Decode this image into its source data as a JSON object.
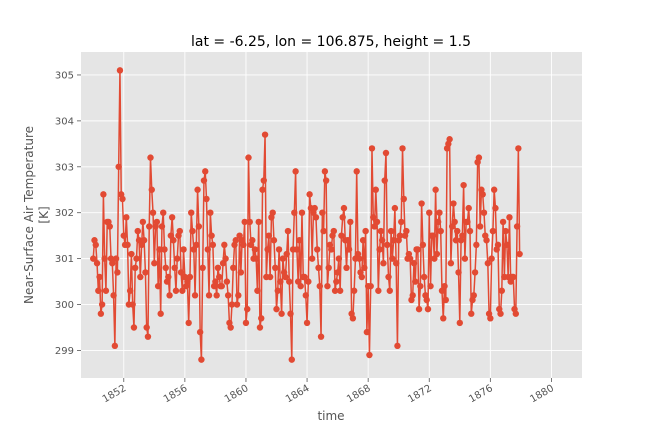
{
  "chart_data": {
    "type": "line",
    "title": "lat = -6.25, lon = 106.875, height = 1.5",
    "xlabel": "time",
    "ylabel_lines": [
      "Near-Surface Air Temperature",
      "[K]"
    ],
    "xlim": [
      1849.2,
      1882.0
    ],
    "ylim": [
      298.4,
      305.5
    ],
    "x_ticks": [
      1852,
      1856,
      1860,
      1864,
      1868,
      1872,
      1876,
      1880
    ],
    "y_ticks": [
      299,
      300,
      301,
      302,
      303,
      304,
      305
    ],
    "grid": true,
    "color": "#E24A33",
    "series": [
      {
        "x_start": 1850,
        "step": 0.0833333,
        "values": [
          301.0,
          301.4,
          301.3,
          300.9,
          300.3,
          300.6,
          299.8,
          300.0,
          302.4,
          301.0,
          300.3,
          301.8,
          301.8,
          301.7,
          301.0,
          300.9,
          300.2,
          299.1,
          301.0,
          300.7,
          303.0,
          305.1,
          302.4,
          302.3,
          301.5,
          301.3,
          301.9,
          301.3,
          300.0,
          300.3,
          301.1,
          300.0,
          299.5,
          300.8,
          301.0,
          301.6,
          301.4,
          300.6,
          301.3,
          301.8,
          301.4,
          300.7,
          299.5,
          299.3,
          301.7,
          303.2,
          302.5,
          302.0,
          300.9,
          301.7,
          301.8,
          300.4,
          301.2,
          299.8,
          301.7,
          302.0,
          301.2,
          300.8,
          300.5,
          300.6,
          300.2,
          301.5,
          301.9,
          301.4,
          300.8,
          300.3,
          301.0,
          301.5,
          301.6,
          300.7,
          300.3,
          301.2,
          300.6,
          300.4,
          300.5,
          299.6,
          300.6,
          302.0,
          301.6,
          301.2,
          300.2,
          301.3,
          302.5,
          301.7,
          299.4,
          298.8,
          300.8,
          302.7,
          302.9,
          302.3,
          301.2,
          300.2,
          302.0,
          301.5,
          301.3,
          300.4,
          300.5,
          300.2,
          300.8,
          300.6,
          300.4,
          300.4,
          300.9,
          301.3,
          301.0,
          300.5,
          300.2,
          299.6,
          299.5,
          300.0,
          300.8,
          301.3,
          301.4,
          300.0,
          300.2,
          301.5,
          300.7,
          301.4,
          301.3,
          301.8,
          299.6,
          299.9,
          303.2,
          301.8,
          301.3,
          301.4,
          301.0,
          301.2,
          301.0,
          300.3,
          301.8,
          299.5,
          299.7,
          302.5,
          302.7,
          303.7,
          300.6,
          301.2,
          301.5,
          300.6,
          301.9,
          302.0,
          301.4,
          300.8,
          299.9,
          300.3,
          301.2,
          300.5,
          299.8,
          301.0,
          300.7,
          300.6,
          301.1,
          301.6,
          300.5,
          299.8,
          298.8,
          301.2,
          302.0,
          302.9,
          301.2,
          300.5,
          301.4,
          300.4,
          302.0,
          300.6,
          300.6,
          300.2,
          299.6,
          300.5,
          302.4,
          302.1,
          301.0,
          302.0,
          302.1,
          301.9,
          301.2,
          300.8,
          300.4,
          299.3,
          302.0,
          301.6,
          302.9,
          302.7,
          300.4,
          300.8,
          301.3,
          301.2,
          301.5,
          301.6,
          300.3,
          300.5,
          300.7,
          301.0,
          300.3,
          301.5,
          301.9,
          302.1,
          301.4,
          300.8,
          301.4,
          301.2,
          301.8,
          299.8,
          299.7,
          300.3,
          301.0,
          302.9,
          301.1,
          301.0,
          300.7,
          300.6,
          301.4,
          300.8,
          301.6,
          299.4,
          300.4,
          298.9,
          300.4,
          303.4,
          301.9,
          301.7,
          302.5,
          301.8,
          300.3,
          301.2,
          301.6,
          301.4,
          300.9,
          302.7,
          303.3,
          301.3,
          300.6,
          300.3,
          301.6,
          301.0,
          301.4,
          302.1,
          300.9,
          299.1,
          301.4,
          301.5,
          301.8,
          303.4,
          302.3,
          301.5,
          301.6,
          301.0,
          301.1,
          301.0,
          300.1,
          300.2,
          300.9,
          300.5,
          301.2,
          301.2,
          299.9,
          300.4,
          302.2,
          301.3,
          300.6,
          300.2,
          300.1,
          299.9,
          302.0,
          300.4,
          301.5,
          301.5,
          301.0,
          302.5,
          301.1,
          301.8,
          302.0,
          301.6,
          300.3,
          299.7,
          300.4,
          300.1,
          303.4,
          303.5,
          303.6,
          300.9,
          301.7,
          302.2,
          301.8,
          301.4,
          301.6,
          300.7,
          299.6,
          301.4,
          301.5,
          302.6,
          301.0,
          301.8,
          301.8,
          302.1,
          301.6,
          299.8,
          300.1,
          300.2,
          300.7,
          301.3,
          303.1,
          303.2,
          301.7,
          302.5,
          302.4,
          302.0,
          301.5,
          301.4,
          300.9,
          299.8,
          299.7,
          301.0,
          301.6,
          302.5,
          302.1,
          301.2,
          301.3,
          299.9,
          299.8,
          300.3,
          301.8,
          300.6,
          301.6,
          301.3,
          300.6,
          301.9,
          300.5,
          300.6,
          300.6,
          299.9,
          299.8,
          301.7,
          303.4,
          301.1
        ]
      }
    ]
  }
}
